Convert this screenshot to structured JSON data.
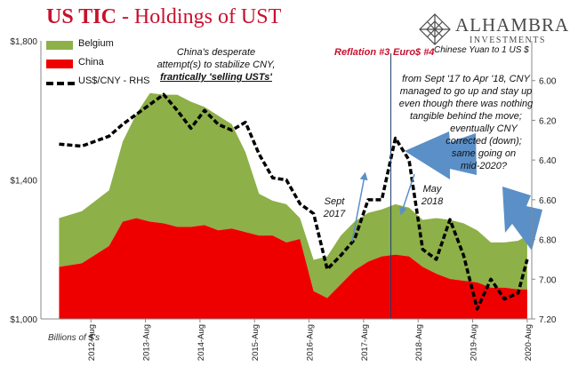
{
  "header": {
    "title_main": "US TIC",
    "title_sub": " - Holdings of UST"
  },
  "logo": {
    "name": "ALHAMBRA",
    "tagline": "INVESTMENTS",
    "icon": "diamond-lattice-icon"
  },
  "annotations": {
    "china_attempt": [
      "China's desperate",
      "attempt(s) to stabilize CNY,",
      "frantically 'selling USTs'"
    ],
    "reflation": "Reflation #3",
    "euro": "Euro$ #4",
    "cny_note": [
      "from Sept '17 to Apr '18, CNY",
      "managed to go up and stay up",
      "even though there was nothing",
      "tangible behind the move;",
      "eventually CNY",
      "corrected (down);",
      "same going on",
      "mid-2020?"
    ],
    "sept_2017": [
      "Sept",
      "2017"
    ],
    "may_2018": [
      "May",
      "2018"
    ],
    "rhs_label": "Chinese Yuan to 1 US $",
    "units": "Billions of $'s"
  },
  "colors": {
    "belgium": "#8db048",
    "china": "#ee0000",
    "arrow": "#5b8fc7",
    "title": "#c8102e"
  },
  "chart_data": {
    "type": "area",
    "title": "US TIC - Holdings of UST",
    "ylabel_right": "Chinese Yuan to 1 US $",
    "ylim_left": [
      1000,
      1800
    ],
    "yticks_left": [
      "$1,000",
      "$1,400",
      "$1,800"
    ],
    "ylim_right": [
      7.2,
      5.8
    ],
    "right_axis_inverted": true,
    "yticks_right": [
      "6.00",
      "6.20",
      "6.40",
      "6.60",
      "6.80",
      "7.00",
      "7.20"
    ],
    "xticks": [
      "2012-Aug",
      "2013-Aug",
      "2014-Aug",
      "2015-Aug",
      "2016-Aug",
      "2017-Aug",
      "2018-Aug",
      "2019-Aug",
      "2020-Aug"
    ],
    "legend": [
      "Belgium",
      "China",
      "US$/CNY - RHS"
    ],
    "legend_placement": "top-left",
    "dates": [
      "2012-01",
      "2012-06",
      "2012-12",
      "2013-03",
      "2013-06",
      "2013-09",
      "2013-12",
      "2014-03",
      "2014-06",
      "2014-09",
      "2014-12",
      "2015-03",
      "2015-06",
      "2015-09",
      "2015-12",
      "2016-03",
      "2016-06",
      "2016-09",
      "2016-12",
      "2017-03",
      "2017-06",
      "2017-09",
      "2017-12",
      "2018-03",
      "2018-06",
      "2018-09",
      "2018-12",
      "2019-03",
      "2019-06",
      "2019-09",
      "2019-12",
      "2020-03",
      "2020-06",
      "2020-08"
    ],
    "series": [
      {
        "name": "China",
        "values": [
          1150,
          1160,
          1210,
          1280,
          1290,
          1280,
          1275,
          1265,
          1265,
          1270,
          1255,
          1260,
          1250,
          1240,
          1240,
          1220,
          1230,
          1080,
          1060,
          1100,
          1140,
          1165,
          1180,
          1185,
          1180,
          1150,
          1130,
          1115,
          1110,
          1105,
          1090,
          1090,
          1085,
          1085
        ]
      },
      {
        "name": "Belgium",
        "values": [
          140,
          150,
          160,
          230,
          300,
          370,
          370,
          380,
          360,
          340,
          330,
          300,
          230,
          120,
          100,
          110,
          60,
          90,
          120,
          140,
          140,
          140,
          135,
          145,
          140,
          135,
          160,
          170,
          165,
          150,
          130,
          130,
          140,
          155
        ]
      },
      {
        "name": "US$/CNY - RHS",
        "values": [
          6.32,
          6.33,
          6.28,
          6.22,
          6.17,
          6.12,
          6.07,
          6.15,
          6.24,
          6.15,
          6.22,
          6.25,
          6.21,
          6.37,
          6.49,
          6.5,
          6.62,
          6.67,
          6.95,
          6.88,
          6.8,
          6.6,
          6.6,
          6.29,
          6.4,
          6.85,
          6.9,
          6.7,
          6.88,
          7.15,
          7.0,
          7.1,
          7.07,
          6.9
        ]
      }
    ]
  }
}
